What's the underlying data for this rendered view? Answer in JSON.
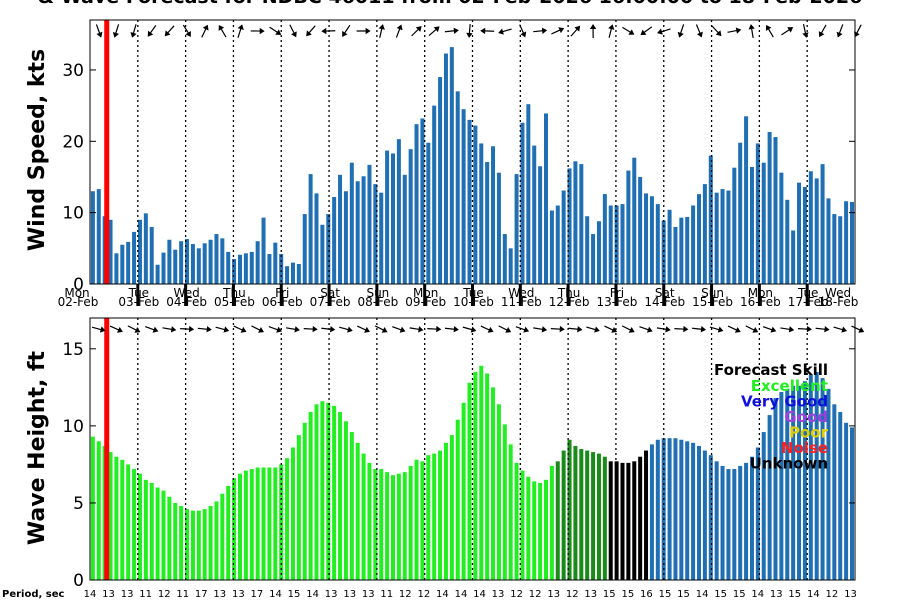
{
  "title": "& Wave Forecast for NDBC 46011 from 02-Feb-2026 16:00:00 to 18-Feb-2026",
  "colors": {
    "bar": "#1f6fb2",
    "now_line": "#ff0000",
    "skill_excellent": "#22ee22",
    "skill_very_good": "#1010dd",
    "skill_good": "#a040dd",
    "skill_poor": "#ddcc00",
    "skill_noise": "#ff2020",
    "skill_unknown": "#000000"
  },
  "day_labels": [
    {
      "dow": "Mon",
      "date": "02-Feb"
    },
    {
      "dow": "Tue",
      "date": "03-Feb"
    },
    {
      "dow": "Wed",
      "date": "04-Feb"
    },
    {
      "dow": "Thu",
      "date": "05-Feb"
    },
    {
      "dow": "Fri",
      "date": "06-Feb"
    },
    {
      "dow": "Sat",
      "date": "07-Feb"
    },
    {
      "dow": "Sun",
      "date": "08-Feb"
    },
    {
      "dow": "Mon",
      "date": "09-Feb"
    },
    {
      "dow": "Tue",
      "date": "10-Feb"
    },
    {
      "dow": "Wed",
      "date": "11-Feb"
    },
    {
      "dow": "Thu",
      "date": "12-Feb"
    },
    {
      "dow": "Fri",
      "date": "13-Feb"
    },
    {
      "dow": "Sat",
      "date": "14-Feb"
    },
    {
      "dow": "Sun",
      "date": "15-Feb"
    },
    {
      "dow": "Mon",
      "date": "16-Feb"
    },
    {
      "dow": "Tue",
      "date": "17-Feb"
    },
    {
      "dow": "Wed",
      "date": "18-Feb"
    }
  ],
  "period_label": "Period, sec",
  "period_values": [
    "14",
    "13",
    "13",
    "11",
    "12",
    "11",
    "17",
    "13",
    "13",
    "17",
    "14",
    "15",
    "14",
    "13",
    "13",
    "13",
    "11",
    "12",
    "12",
    "14",
    "14",
    "14",
    "13",
    "12",
    "12",
    "13",
    "12",
    "13",
    "15",
    "15",
    "16",
    "15",
    "15",
    "14",
    "15",
    "15",
    "14",
    "13",
    "15",
    "14",
    "12",
    "13"
  ],
  "legend": {
    "title": "Forecast Skill",
    "items": [
      {
        "label": "Excellent",
        "color": "#22ee22"
      },
      {
        "label": "Very Good",
        "color": "#1010dd"
      },
      {
        "label": "Good",
        "color": "#a040dd"
      },
      {
        "label": "Poor",
        "color": "#ddcc00"
      },
      {
        "label": "Noise",
        "color": "#ff2020"
      },
      {
        "label": "Unknown",
        "color": "#000000"
      }
    ]
  },
  "chart_data": [
    {
      "type": "bar",
      "ylabel": "Wind Speed, kts",
      "ylim": [
        0,
        37
      ],
      "yticks": [
        0,
        10,
        20,
        30
      ],
      "xlim_days": [
        0,
        16
      ],
      "now_day": 0.35,
      "bar_interval_hours": 3,
      "values": [
        13,
        13.3,
        9.5,
        9,
        4.3,
        5.5,
        5.9,
        7.3,
        9,
        9.9,
        8,
        2.7,
        4.4,
        6.2,
        4.8,
        6,
        6.3,
        5.6,
        5,
        5.7,
        6.2,
        7,
        6.4,
        4.5,
        3.5,
        4.1,
        4.3,
        4.5,
        6,
        9.3,
        4.2,
        5.8,
        4.2,
        2.5,
        3,
        2.8,
        9.8,
        15.4,
        12.7,
        8.3,
        9.8,
        12.2,
        15.3,
        13,
        17,
        14.4,
        15.1,
        16.7,
        14,
        12.8,
        18.7,
        18.3,
        20.3,
        15.3,
        18.9,
        22.4,
        23.2,
        19.8,
        25,
        29,
        32.3,
        33.2,
        27,
        24.5,
        23,
        22.2,
        19.7,
        17.1,
        19.3,
        15.6,
        7,
        5,
        15.4,
        22.6,
        25.2,
        19.4,
        16.5,
        23.9,
        10.3,
        11,
        13.1,
        16.2,
        17.2,
        16.8,
        9.5,
        7,
        8.8,
        12.6,
        11,
        11,
        11.2,
        15.9,
        17.7,
        15,
        12.7,
        12.3,
        11.2,
        8.9,
        10.4,
        8,
        9.3,
        9.4,
        11,
        12.6,
        14,
        18,
        12.8,
        13.3,
        13.1,
        16.3,
        19.8,
        23.5,
        16.4,
        19.7,
        17,
        21.3,
        20.6,
        15.6,
        11.8,
        7.5,
        14.2,
        13.6,
        15.8,
        14.8,
        16.8,
        12,
        9.8,
        9.5,
        11.6,
        11.5
      ]
    },
    {
      "type": "bar",
      "ylabel": "Wave Height, ft",
      "ylim": [
        0,
        17
      ],
      "yticks": [
        0,
        5,
        10,
        15
      ],
      "xlim_days": [
        0,
        16
      ],
      "now_day": 0.35,
      "bar_interval_hours": 3,
      "values": [
        9.3,
        9,
        8.7,
        8.3,
        8,
        7.8,
        7.5,
        7.2,
        6.9,
        6.5,
        6.3,
        6,
        5.8,
        5.4,
        5,
        4.8,
        4.6,
        4.5,
        4.5,
        4.6,
        4.8,
        5.1,
        5.6,
        6.1,
        6.6,
        6.9,
        7.1,
        7.2,
        7.3,
        7.3,
        7.3,
        7.3,
        7.5,
        7.9,
        8.6,
        9.4,
        10.2,
        10.9,
        11.4,
        11.6,
        11.5,
        11.3,
        10.9,
        10.3,
        9.6,
        8.9,
        8.2,
        7.6,
        7.2,
        7.2,
        7,
        6.8,
        6.9,
        7,
        7.4,
        7.8,
        7.7,
        8.1,
        8.2,
        8.4,
        8.9,
        9.4,
        10.4,
        11.5,
        12.8,
        13.5,
        13.9,
        13.4,
        12.5,
        11.4,
        10.1,
        8.8,
        7.6,
        7.1,
        6.7,
        6.4,
        6.3,
        6.5,
        7.4,
        7.7,
        8.4,
        9.1,
        8.7,
        8.5,
        8.4,
        8.3,
        8.2,
        8,
        7.7,
        7.7,
        7.6,
        7.6,
        7.7,
        8,
        8.4,
        8.8,
        9.1,
        9.2,
        9.2,
        9.2,
        9.1,
        9,
        8.9,
        8.7,
        8.4,
        8.1,
        7.7,
        7.4,
        7.2,
        7.2,
        7.4,
        7.6,
        8,
        8.6,
        9.6,
        10.7,
        11.8,
        12.2,
        12.4,
        12.6,
        12.6,
        12.9,
        13.3,
        13.5,
        13.1,
        12.4,
        11.4,
        10.9,
        10.2,
        9.9
      ]
    }
  ]
}
